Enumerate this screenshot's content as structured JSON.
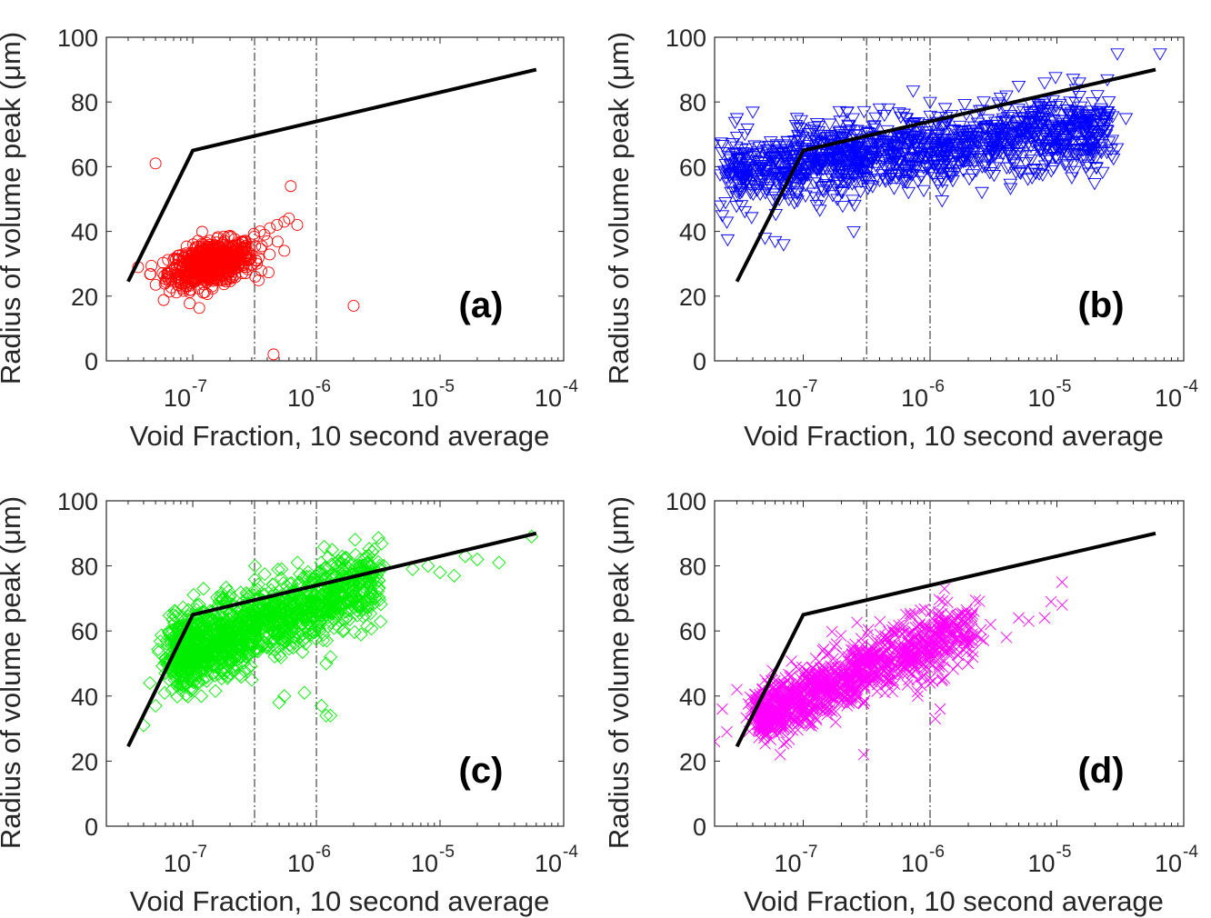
{
  "chart_data": [
    {
      "id": "a",
      "type": "scatter",
      "panel_label": "(a)",
      "xlabel": "Void Fraction, 10 second average",
      "ylabel": "Radius of volume peak (μm)",
      "xscale": "log",
      "xlim": [
        2e-08,
        0.0001
      ],
      "ylim": [
        0,
        100
      ],
      "xticks": [
        {
          "base": "10",
          "exp": "-7",
          "value": 1e-07
        },
        {
          "base": "10",
          "exp": "-6",
          "value": 1e-06
        },
        {
          "base": "10",
          "exp": "-5",
          "value": 1e-05
        },
        {
          "base": "10",
          "exp": "-4",
          "value": 0.0001
        }
      ],
      "yticks": [
        0,
        20,
        40,
        60,
        80,
        100
      ],
      "grid": false,
      "marker": "circle",
      "color": "#ff0000",
      "cluster": {
        "x_log_center": -6.85,
        "x_log_spread": 0.17,
        "y_center": 30,
        "y_spread": 3.2,
        "count": 700,
        "slope": 8
      },
      "points": [
        [
          5e-08,
          61
        ],
        [
          3.5e-07,
          40
        ],
        [
          4.2e-07,
          41
        ],
        [
          4.8e-07,
          42
        ],
        [
          5.5e-07,
          43
        ],
        [
          6e-07,
          44
        ],
        [
          6.2e-07,
          54
        ],
        [
          7e-07,
          42
        ],
        [
          5.5e-07,
          34
        ],
        [
          3.2e-07,
          26
        ],
        [
          4.5e-07,
          2
        ],
        [
          2e-06,
          17
        ],
        [
          3.8e-07,
          39
        ],
        [
          4e-07,
          37
        ],
        [
          3.3e-07,
          30
        ]
      ],
      "reference_line": {
        "x": [
          3e-08,
          1e-07,
          6e-05
        ],
        "y": [
          24.5,
          65,
          90
        ],
        "color": "#000000"
      },
      "vlines": [
        3.16e-07,
        1e-06
      ]
    },
    {
      "id": "b",
      "type": "scatter",
      "panel_label": "(b)",
      "xlabel": "Void Fraction, 10 second average",
      "ylabel": "Radius of volume peak (μm)",
      "xscale": "log",
      "xlim": [
        2e-08,
        0.0001
      ],
      "ylim": [
        0,
        100
      ],
      "xticks": [
        {
          "base": "10",
          "exp": "-7",
          "value": 1e-07
        },
        {
          "base": "10",
          "exp": "-6",
          "value": 1e-06
        },
        {
          "base": "10",
          "exp": "-5",
          "value": 1e-05
        },
        {
          "base": "10",
          "exp": "-4",
          "value": 0.0001
        }
      ],
      "yticks": [
        0,
        20,
        40,
        60,
        80,
        100
      ],
      "grid": false,
      "marker": "triangle-down",
      "color": "#0000ff",
      "cluster": {
        "x_log_start": -7.6,
        "x_log_end": -4.6,
        "y_start": 58,
        "y_end": 72,
        "y_spread": 5.5,
        "count": 1400
      },
      "points": [
        [
          2.2e-08,
          48
        ],
        [
          2.3e-08,
          45
        ],
        [
          2.5e-08,
          43
        ],
        [
          3e-08,
          75
        ],
        [
          4e-08,
          77
        ],
        [
          5e-08,
          38
        ],
        [
          6e-08,
          37
        ],
        [
          7e-08,
          36
        ],
        [
          2.5e-07,
          40
        ],
        [
          4e-07,
          78
        ],
        [
          1e-06,
          80
        ],
        [
          4e-06,
          82
        ],
        [
          5e-06,
          85
        ],
        [
          8e-06,
          86
        ],
        [
          1.5e-05,
          86
        ],
        [
          2.5e-05,
          87
        ],
        [
          3e-05,
          95
        ],
        [
          6.5e-05,
          95
        ],
        [
          3.5e-05,
          75
        ],
        [
          2.5e-05,
          77
        ]
      ],
      "reference_line": {
        "x": [
          3e-08,
          1e-07,
          6e-05
        ],
        "y": [
          24.5,
          65,
          90
        ],
        "color": "#000000"
      },
      "vlines": [
        3.16e-07,
        1e-06
      ]
    },
    {
      "id": "c",
      "type": "scatter",
      "panel_label": "(c)",
      "xlabel": "Void Fraction, 10 second average",
      "ylabel": "Radius of volume peak (μm)",
      "xscale": "log",
      "xlim": [
        2e-08,
        0.0001
      ],
      "ylim": [
        0,
        100
      ],
      "xticks": [
        {
          "base": "10",
          "exp": "-7",
          "value": 1e-07
        },
        {
          "base": "10",
          "exp": "-6",
          "value": 1e-06
        },
        {
          "base": "10",
          "exp": "-5",
          "value": 1e-05
        },
        {
          "base": "10",
          "exp": "-4",
          "value": 0.0001
        }
      ],
      "yticks": [
        0,
        20,
        40,
        60,
        80,
        100
      ],
      "grid": false,
      "marker": "diamond",
      "color": "#00ee00",
      "cluster": {
        "x_log_start": -7.15,
        "x_log_end": -5.5,
        "y_start": 52,
        "y_end": 76,
        "y_spread": 5.5,
        "count": 1500
      },
      "points": [
        [
          4e-08,
          31
        ],
        [
          5e-08,
          37
        ],
        [
          4.5e-08,
          44
        ],
        [
          6e-08,
          47
        ],
        [
          9e-08,
          66
        ],
        [
          3e-07,
          45
        ],
        [
          5e-07,
          38
        ],
        [
          5.5e-07,
          40
        ],
        [
          8e-07,
          41
        ],
        [
          1.1e-06,
          37
        ],
        [
          1.2e-06,
          34
        ],
        [
          1.3e-06,
          34
        ],
        [
          1.2e-06,
          50
        ],
        [
          1.3e-06,
          52
        ],
        [
          1e-06,
          77
        ],
        [
          3.5e-06,
          80
        ],
        [
          6e-06,
          79
        ],
        [
          8e-06,
          80
        ],
        [
          1e-05,
          78
        ],
        [
          1.3e-05,
          77
        ],
        [
          1.6e-05,
          83
        ],
        [
          2e-05,
          82
        ],
        [
          3e-05,
          81
        ],
        [
          5.5e-05,
          89
        ]
      ],
      "reference_line": {
        "x": [
          3e-08,
          1e-07,
          6e-05
        ],
        "y": [
          24.5,
          65,
          90
        ],
        "color": "#000000"
      },
      "vlines": [
        3.16e-07,
        1e-06
      ]
    },
    {
      "id": "d",
      "type": "scatter",
      "panel_label": "(d)",
      "xlabel": "Void Fraction, 10 second average",
      "ylabel": "Radius of volume peak (μm)",
      "xscale": "log",
      "xlim": [
        2e-08,
        0.0001
      ],
      "ylim": [
        0,
        100
      ],
      "xticks": [
        {
          "base": "10",
          "exp": "-7",
          "value": 1e-07
        },
        {
          "base": "10",
          "exp": "-6",
          "value": 1e-06
        },
        {
          "base": "10",
          "exp": "-5",
          "value": 1e-05
        },
        {
          "base": "10",
          "exp": "-4",
          "value": 0.0001
        }
      ],
      "yticks": [
        0,
        20,
        40,
        60,
        80,
        100
      ],
      "grid": false,
      "marker": "x",
      "color": "#ff00ff",
      "cluster": {
        "x_log_start": -7.35,
        "x_log_end": -5.65,
        "y_start": 34,
        "y_end": 62,
        "y_spread": 4.5,
        "count": 1200
      },
      "points": [
        [
          2e-08,
          26
        ],
        [
          2.5e-08,
          29
        ],
        [
          2.3e-08,
          36
        ],
        [
          3e-08,
          42
        ],
        [
          4e-08,
          39
        ],
        [
          5e-08,
          45
        ],
        [
          3e-07,
          22
        ],
        [
          8e-07,
          40
        ],
        [
          1e-06,
          44
        ],
        [
          1.1e-06,
          33
        ],
        [
          1.2e-06,
          36
        ],
        [
          1.3e-06,
          73
        ],
        [
          2e-06,
          50
        ],
        [
          3e-06,
          62
        ],
        [
          4e-06,
          58
        ],
        [
          5e-06,
          64
        ],
        [
          6e-06,
          63
        ],
        [
          8e-06,
          64
        ],
        [
          9e-06,
          69
        ],
        [
          1.1e-05,
          75
        ],
        [
          1.1e-05,
          68
        ]
      ],
      "reference_line": {
        "x": [
          3e-08,
          1e-07,
          6e-05
        ],
        "y": [
          24.5,
          65,
          90
        ],
        "color": "#000000"
      },
      "vlines": [
        3.16e-07,
        1e-06
      ]
    }
  ]
}
